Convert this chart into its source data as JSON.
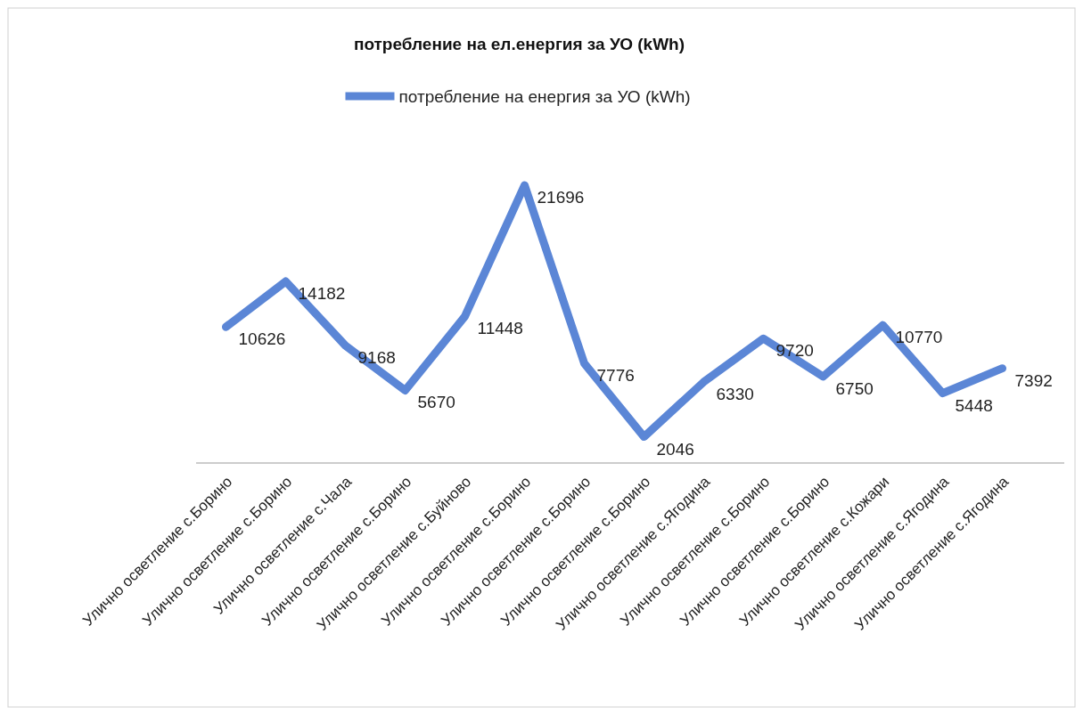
{
  "chart_data": {
    "type": "line",
    "title": "потребление на ел.енергия за УО (kWh)",
    "categories": [
      "Улично осветление с.Борино",
      "Улично осветление с.Борино",
      "Улично осветление с.Чала",
      "Улично осветление с.Борино",
      "Улично осветление с.Буйново",
      "Улично осветление с.Борино",
      "Улично осветление с.Борино",
      "Улично осветление с.Борино",
      "Улично осветление с.Ягодина",
      "Улично осветление с.Борино",
      "Улично осветление с.Борино",
      "Улично осветление с.Кожари",
      "Улично осветление с.Ягодина",
      "Улично осветление с.Ягодина"
    ],
    "series": [
      {
        "name": "потребление на енергия за УО (kWh)",
        "color": "#5b86d6",
        "values": [
          10626,
          14182,
          9168,
          5670,
          11448,
          21696,
          7776,
          2046,
          6330,
          9720,
          6750,
          10770,
          5448,
          7392
        ]
      }
    ],
    "tick_labels": "x",
    "data_labels": true,
    "legend": "top",
    "marker": "none",
    "line_style": "solid"
  }
}
